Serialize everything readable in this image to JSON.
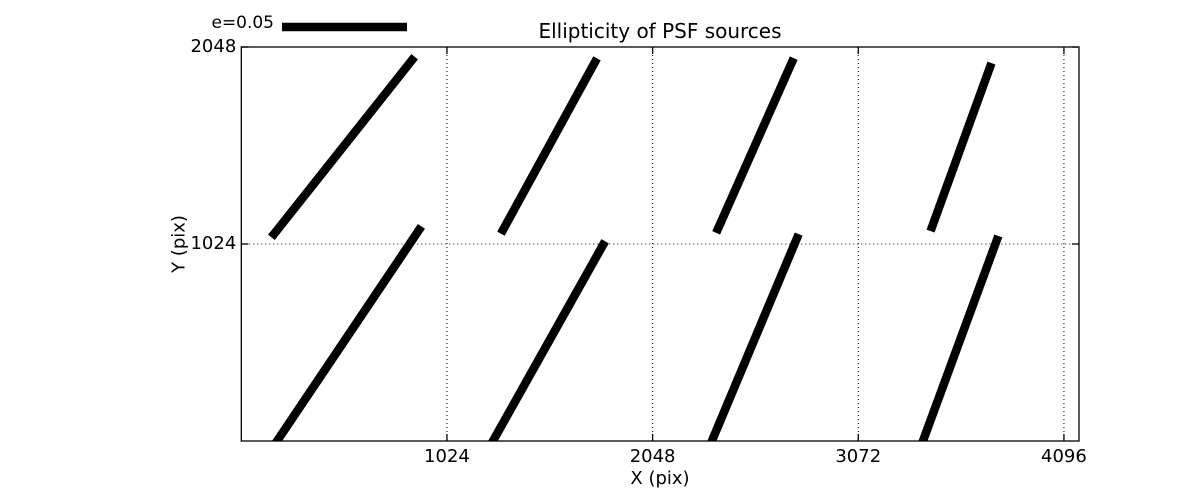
{
  "chart_data": {
    "type": "line",
    "subtype": "psf-ellipticity-whiskers",
    "title": "Ellipticity of PSF sources",
    "xlabel": "X (pix)",
    "ylabel": "Y (pix)",
    "xlim": [
      0,
      4171
    ],
    "ylim": [
      0,
      2048
    ],
    "xticks": [
      1024,
      2048,
      3072,
      4096
    ],
    "yticks": [
      1024,
      2048
    ],
    "grid": "dotted",
    "legend": {
      "label": "e=0.05"
    },
    "line_color": "#000000",
    "background_color": "#ffffff",
    "segments": [
      {
        "x1": 163,
        "y1": 1076,
        "x2": 850,
        "y2": 1980
      },
      {
        "x1": 1303,
        "y1": 1097,
        "x2": 1761,
        "y2": 1970
      },
      {
        "x1": 2373,
        "y1": 1102,
        "x2": 2742,
        "y2": 1970
      },
      {
        "x1": 3439,
        "y1": 1112,
        "x2": 3728,
        "y2": 1944
      },
      {
        "x1": 178,
        "y1": 0,
        "x2": 885,
        "y2": 1097
      },
      {
        "x1": 1253,
        "y1": 0,
        "x2": 1801,
        "y2": 1019
      },
      {
        "x1": 2343,
        "y1": 0,
        "x2": 2767,
        "y2": 1055
      },
      {
        "x1": 3394,
        "y1": 0,
        "x2": 3762,
        "y2": 1045
      }
    ]
  }
}
